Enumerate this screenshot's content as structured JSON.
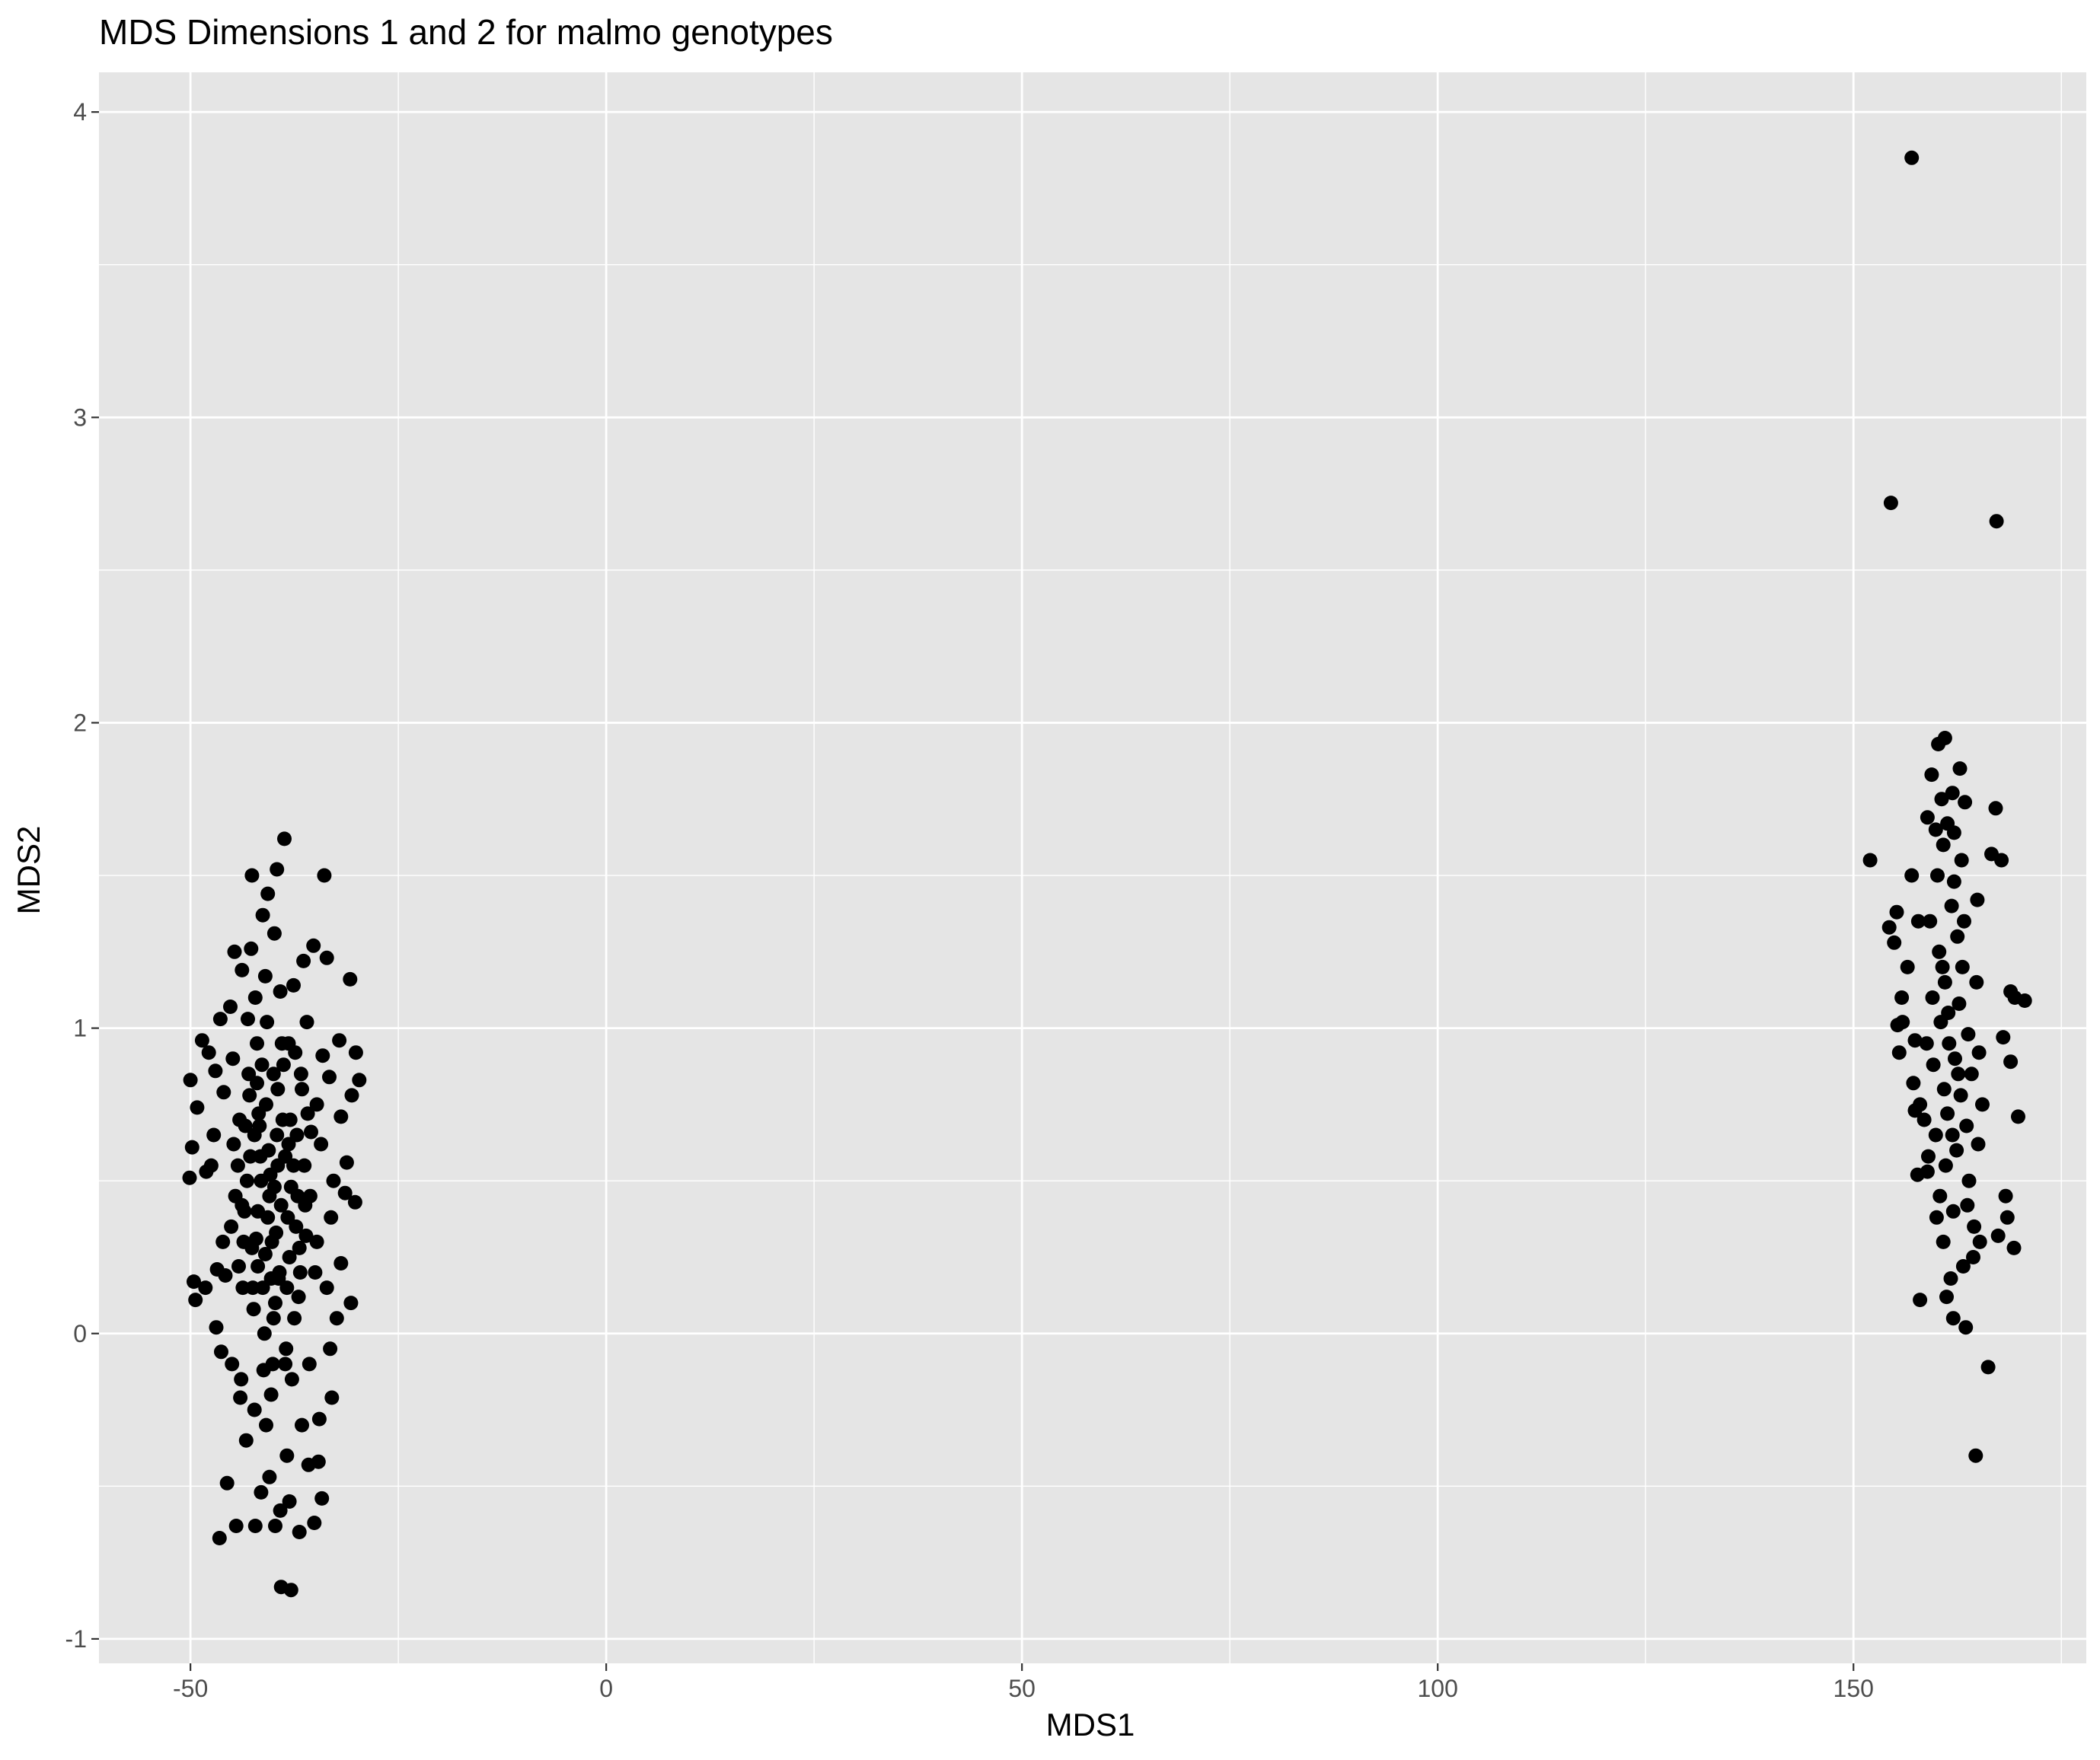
{
  "chart_data": {
    "type": "scatter",
    "title": "MDS Dimensions 1 and 2 for malmo genotypes",
    "xlabel": "MDS1",
    "ylabel": "MDS2",
    "xlim": [
      -61,
      178
    ],
    "ylim": [
      -1.08,
      4.13
    ],
    "x_ticks": [
      -50,
      0,
      50,
      100,
      150
    ],
    "x_tick_labels": [
      "-50",
      "0",
      "50",
      "100",
      "150"
    ],
    "y_ticks": [
      -1,
      0,
      1,
      2,
      3,
      4
    ],
    "y_tick_labels": [
      "-1",
      "0",
      "1",
      "2",
      "3",
      "4"
    ],
    "x_minor": [
      -25,
      25,
      75,
      125,
      175
    ],
    "y_minor": [
      -0.5,
      0.5,
      1.5,
      2.5,
      3.5
    ],
    "grid": true,
    "colors": {
      "panel": "#e5e5e5",
      "grid": "#ffffff",
      "point": "#000000"
    },
    "series": [
      {
        "points": [
          [
            -40.5,
            0.45
          ],
          [
            -38.2,
            0.62
          ],
          [
            -42.1,
            0.31
          ],
          [
            -39.4,
            0.18
          ],
          [
            -37.6,
            0.55
          ],
          [
            -41.8,
            0.72
          ],
          [
            -43.5,
            0.4
          ],
          [
            -36.9,
            0.28
          ],
          [
            -40.0,
            0.05
          ],
          [
            -38.8,
            0.88
          ],
          [
            -44.2,
            0.22
          ],
          [
            -35.5,
            0.66
          ],
          [
            -41.2,
            -0.12
          ],
          [
            -39.0,
            0.95
          ],
          [
            -42.8,
            0.58
          ],
          [
            -37.0,
            0.12
          ],
          [
            -40.8,
            1.02
          ],
          [
            -38.5,
            -0.05
          ],
          [
            -43.0,
            0.85
          ],
          [
            -36.2,
            0.42
          ],
          [
            -45.1,
            0.35
          ],
          [
            -34.8,
            0.75
          ],
          [
            -41.5,
            0.5
          ],
          [
            -39.7,
            0.33
          ],
          [
            -38.0,
            0.7
          ],
          [
            -42.4,
            0.08
          ],
          [
            -37.4,
            0.92
          ],
          [
            -40.3,
            -0.2
          ],
          [
            -44.8,
            0.62
          ],
          [
            -35.0,
            0.2
          ],
          [
            -39.2,
            1.12
          ],
          [
            -41.0,
            0.26
          ],
          [
            -43.7,
            0.15
          ],
          [
            -36.6,
            0.8
          ],
          [
            -40.6,
            0.6
          ],
          [
            -38.3,
            0.38
          ],
          [
            -42.0,
            0.95
          ],
          [
            -37.8,
            -0.15
          ],
          [
            -39.9,
            0.48
          ],
          [
            -41.7,
            0.68
          ],
          [
            -50.0,
            0.83
          ],
          [
            -49.8,
            0.61
          ],
          [
            -50.1,
            0.51
          ],
          [
            -49.2,
            0.74
          ],
          [
            -48.6,
            0.96
          ],
          [
            -47.8,
            0.92
          ],
          [
            -47.5,
            0.55
          ],
          [
            -49.6,
            0.17
          ],
          [
            -49.4,
            0.11
          ],
          [
            -48.2,
            0.15
          ],
          [
            -46.9,
            0.02
          ],
          [
            -46.3,
            -0.06
          ],
          [
            -47.0,
            0.86
          ],
          [
            -46.4,
            1.03
          ],
          [
            -45.2,
            1.07
          ],
          [
            -44.7,
            1.25
          ],
          [
            -43.8,
            1.19
          ],
          [
            -42.7,
            1.26
          ],
          [
            -41.3,
            1.37
          ],
          [
            -39.9,
            1.31
          ],
          [
            -42.6,
            1.5
          ],
          [
            -40.7,
            1.44
          ],
          [
            -39.6,
            1.52
          ],
          [
            -38.7,
            1.62
          ],
          [
            -33.9,
            1.5
          ],
          [
            -35.2,
            1.27
          ],
          [
            -36.4,
            1.22
          ],
          [
            -33.6,
            1.23
          ],
          [
            -30.8,
            1.16
          ],
          [
            -32.1,
            0.96
          ],
          [
            -30.1,
            0.92
          ],
          [
            -29.7,
            0.83
          ],
          [
            -30.6,
            0.78
          ],
          [
            -31.9,
            0.71
          ],
          [
            -31.2,
            0.56
          ],
          [
            -31.4,
            0.46
          ],
          [
            -30.2,
            0.43
          ],
          [
            -32.8,
            0.5
          ],
          [
            -31.9,
            0.23
          ],
          [
            -30.7,
            0.1
          ],
          [
            -32.4,
            0.05
          ],
          [
            -33.2,
            -0.05
          ],
          [
            -33.0,
            -0.21
          ],
          [
            -34.5,
            -0.28
          ],
          [
            -34.6,
            -0.42
          ],
          [
            -35.8,
            -0.43
          ],
          [
            -34.2,
            -0.54
          ],
          [
            -35.1,
            -0.62
          ],
          [
            -36.9,
            -0.65
          ],
          [
            -37.9,
            -0.84
          ],
          [
            -39.1,
            -0.83
          ],
          [
            -38.1,
            -0.55
          ],
          [
            -39.2,
            -0.58
          ],
          [
            -39.8,
            -0.63
          ],
          [
            -40.5,
            -0.47
          ],
          [
            -41.5,
            -0.52
          ],
          [
            -42.2,
            -0.63
          ],
          [
            -44.5,
            -0.63
          ],
          [
            -45.6,
            -0.49
          ],
          [
            -46.5,
            -0.67
          ],
          [
            -43.3,
            -0.35
          ],
          [
            -44.0,
            -0.21
          ],
          [
            -45.0,
            -0.1
          ],
          [
            -45.8,
            0.19
          ],
          [
            -46.8,
            0.21
          ],
          [
            -46.1,
            0.3
          ],
          [
            -48.1,
            0.53
          ],
          [
            -47.2,
            0.65
          ],
          [
            -46.0,
            0.79
          ],
          [
            -44.9,
            0.9
          ],
          [
            -43.1,
            1.03
          ],
          [
            -42.2,
            1.1
          ],
          [
            -41.0,
            1.17
          ],
          [
            -37.6,
            1.14
          ],
          [
            -36.0,
            1.02
          ],
          [
            -34.1,
            0.91
          ],
          [
            -33.3,
            0.84
          ],
          [
            -34.3,
            0.62
          ],
          [
            -33.1,
            0.38
          ],
          [
            -34.8,
            0.3
          ],
          [
            -33.6,
            0.15
          ],
          [
            -35.7,
            -0.1
          ],
          [
            -36.6,
            -0.3
          ],
          [
            -38.4,
            -0.4
          ],
          [
            -40.9,
            -0.3
          ],
          [
            -42.3,
            -0.25
          ],
          [
            -43.9,
            -0.15
          ],
          [
            -44.6,
            0.45
          ],
          [
            -43.4,
            0.68
          ],
          [
            -42.9,
            0.78
          ],
          [
            -41.4,
            0.88
          ],
          [
            -39.5,
            0.8
          ],
          [
            -38.9,
            0.7
          ],
          [
            -37.2,
            0.65
          ],
          [
            -36.3,
            0.55
          ],
          [
            -35.6,
            0.45
          ],
          [
            -36.1,
            0.32
          ],
          [
            -36.8,
            0.2
          ],
          [
            -37.5,
            0.05
          ],
          [
            -38.6,
            -0.1
          ],
          [
            -40.1,
            -0.1
          ],
          [
            -41.1,
            0.0
          ],
          [
            -42.5,
            0.15
          ],
          [
            -43.6,
            0.3
          ],
          [
            -44.3,
            0.55
          ],
          [
            -43.2,
            0.5
          ],
          [
            -41.9,
            0.4
          ],
          [
            -40.2,
            0.3
          ],
          [
            -39.3,
            0.2
          ],
          [
            -38.1,
            0.25
          ],
          [
            -37.3,
            0.35
          ],
          [
            -37.9,
            0.48
          ],
          [
            -38.6,
            0.58
          ],
          [
            -39.6,
            0.65
          ],
          [
            -40.9,
            0.75
          ],
          [
            -42.0,
            0.82
          ],
          [
            -41.6,
            0.58
          ],
          [
            -40.4,
            0.52
          ],
          [
            -39.1,
            0.42
          ],
          [
            -38.4,
            0.15
          ],
          [
            -39.8,
            0.1
          ],
          [
            -41.3,
            0.15
          ],
          [
            -42.6,
            0.28
          ],
          [
            -43.8,
            0.42
          ],
          [
            -44.1,
            0.7
          ],
          [
            -42.3,
            0.65
          ],
          [
            -40.0,
            0.85
          ],
          [
            -38.2,
            0.95
          ],
          [
            -36.7,
            0.85
          ],
          [
            -35.9,
            0.72
          ],
          [
            -37.1,
            0.45
          ],
          [
            -39.5,
            0.55
          ],
          [
            -40.7,
            0.38
          ],
          [
            -41.9,
            0.22
          ],
          [
            -40.3,
            0.18
          ]
        ]
      },
      {
        "points": [
          [
            157.0,
            3.85
          ],
          [
            154.5,
            2.72
          ],
          [
            167.2,
            2.66
          ],
          [
            161.0,
            1.95
          ],
          [
            160.2,
            1.93
          ],
          [
            162.8,
            1.85
          ],
          [
            159.4,
            1.83
          ],
          [
            161.9,
            1.77
          ],
          [
            160.6,
            1.75
          ],
          [
            163.4,
            1.74
          ],
          [
            167.1,
            1.72
          ],
          [
            158.9,
            1.69
          ],
          [
            161.3,
            1.67
          ],
          [
            159.9,
            1.65
          ],
          [
            162.1,
            1.64
          ],
          [
            160.8,
            1.6
          ],
          [
            152.0,
            1.55
          ],
          [
            166.6,
            1.57
          ],
          [
            167.8,
            1.55
          ],
          [
            157.0,
            1.5
          ],
          [
            155.2,
            1.38
          ],
          [
            157.8,
            1.35
          ],
          [
            154.3,
            1.33
          ],
          [
            154.9,
            1.28
          ],
          [
            156.5,
            1.2
          ],
          [
            155.8,
            1.1
          ],
          [
            170.6,
            1.09
          ],
          [
            168.9,
            1.12
          ],
          [
            169.4,
            1.1
          ],
          [
            155.9,
            1.02
          ],
          [
            155.3,
            1.01
          ],
          [
            157.4,
            0.96
          ],
          [
            168.0,
            0.97
          ],
          [
            155.5,
            0.92
          ],
          [
            168.9,
            0.89
          ],
          [
            157.2,
            0.82
          ],
          [
            158.0,
            0.75
          ],
          [
            157.4,
            0.73
          ],
          [
            169.8,
            0.71
          ],
          [
            157.7,
            0.52
          ],
          [
            158.9,
            0.53
          ],
          [
            168.3,
            0.45
          ],
          [
            168.5,
            0.38
          ],
          [
            169.3,
            0.28
          ],
          [
            167.4,
            0.32
          ],
          [
            165.2,
            0.3
          ],
          [
            164.4,
            0.25
          ],
          [
            158.0,
            0.11
          ],
          [
            161.2,
            0.12
          ],
          [
            162.0,
            0.05
          ],
          [
            163.5,
            0.02
          ],
          [
            166.2,
            -0.11
          ],
          [
            164.7,
            -0.4
          ],
          [
            161.8,
            1.4
          ],
          [
            162.5,
            1.3
          ],
          [
            160.3,
            1.25
          ],
          [
            163.1,
            1.2
          ],
          [
            161.0,
            1.15
          ],
          [
            162.7,
            1.08
          ],
          [
            160.5,
            1.02
          ],
          [
            163.8,
            0.98
          ],
          [
            161.5,
            0.95
          ],
          [
            162.2,
            0.9
          ],
          [
            159.6,
            0.88
          ],
          [
            164.2,
            0.85
          ],
          [
            160.9,
            0.8
          ],
          [
            162.9,
            0.78
          ],
          [
            161.3,
            0.72
          ],
          [
            163.6,
            0.68
          ],
          [
            159.9,
            0.65
          ],
          [
            162.4,
            0.6
          ],
          [
            161.1,
            0.55
          ],
          [
            163.9,
            0.5
          ],
          [
            160.4,
            0.45
          ],
          [
            162.0,
            0.4
          ],
          [
            164.5,
            0.35
          ],
          [
            160.8,
            0.3
          ],
          [
            163.2,
            0.22
          ],
          [
            161.7,
            0.18
          ],
          [
            159.5,
            1.1
          ],
          [
            164.8,
            1.15
          ],
          [
            158.8,
            0.95
          ],
          [
            165.1,
            0.92
          ],
          [
            159.2,
            1.35
          ],
          [
            164.9,
            1.42
          ],
          [
            160.1,
            1.5
          ],
          [
            163.0,
            1.55
          ],
          [
            158.5,
            0.7
          ],
          [
            165.5,
            0.75
          ],
          [
            159.0,
            0.58
          ],
          [
            165.0,
            0.62
          ],
          [
            160.0,
            0.38
          ],
          [
            163.7,
            0.42
          ],
          [
            161.4,
            1.05
          ],
          [
            162.6,
            0.85
          ],
          [
            161.9,
            0.65
          ],
          [
            160.7,
            1.2
          ],
          [
            163.3,
            1.35
          ],
          [
            162.1,
            1.48
          ]
        ]
      }
    ]
  }
}
